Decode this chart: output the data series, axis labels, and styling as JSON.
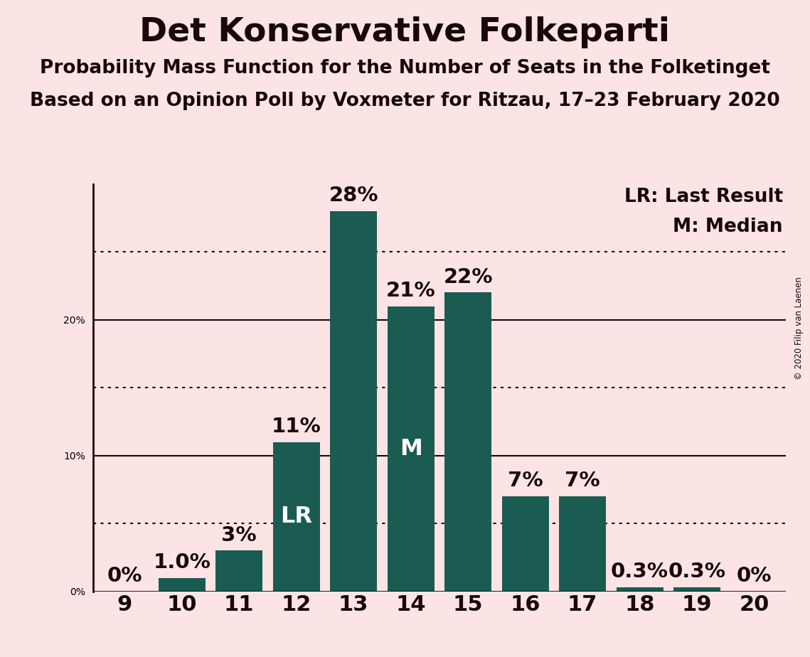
{
  "title": "Det Konservative Folkeparti",
  "subtitle1": "Probability Mass Function for the Number of Seats in the Folketinget",
  "subtitle2": "Based on an Opinion Poll by Voxmeter for Ritzau, 17–23 February 2020",
  "copyright": "© 2020 Filip van Laenen",
  "seats": [
    9,
    10,
    11,
    12,
    13,
    14,
    15,
    16,
    17,
    18,
    19,
    20
  ],
  "values": [
    0.0,
    1.0,
    3.0,
    11.0,
    28.0,
    21.0,
    22.0,
    7.0,
    7.0,
    0.3,
    0.3,
    0.0
  ],
  "bar_color": "#1a5c52",
  "background_color": "#fce4e4",
  "bar_labels": [
    "0%",
    "1.0%",
    "3%",
    "11%",
    "28%",
    "21%",
    "22%",
    "7%",
    "7%",
    "0.3%",
    "0.3%",
    "0%"
  ],
  "inside_labels": {
    "3": "LR",
    "5": "M"
  },
  "yticks": [
    0,
    10,
    20
  ],
  "ytick_labels": [
    "0%",
    "10%",
    "20%"
  ],
  "dotted_lines": [
    5,
    15,
    25
  ],
  "solid_lines": [
    10,
    20
  ],
  "ylim": [
    0,
    30
  ],
  "xlim_min": 8.45,
  "xlim_max": 20.55,
  "legend_lr": "LR: Last Result",
  "legend_m": "M: Median",
  "title_fontsize": 34,
  "subtitle_fontsize": 19,
  "axis_tick_fontsize": 22,
  "bar_label_fontsize": 21,
  "inside_label_fontsize": 23,
  "legend_fontsize": 19,
  "bar_width": 0.82,
  "text_color": "#1a0808",
  "line_color": "#1a0808"
}
